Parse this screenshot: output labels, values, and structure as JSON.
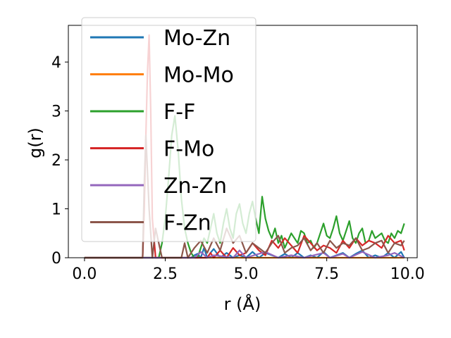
{
  "chart_data": {
    "type": "line",
    "xlabel": "r (Å)",
    "ylabel": "g(r)",
    "xlim": [
      -0.5,
      10.3
    ],
    "ylim": [
      0,
      4.75
    ],
    "xticks": [
      0.0,
      2.5,
      5.0,
      7.5,
      10.0
    ],
    "xtick_labels": [
      "0.0",
      "2.5",
      "5.0",
      "7.5",
      "10.0"
    ],
    "yticks": [
      0,
      1,
      2,
      3,
      4
    ],
    "ytick_labels": [
      "0",
      "1",
      "2",
      "3",
      "4"
    ],
    "grid": false,
    "legend_position": "upper-left",
    "series": [
      {
        "name": "Mo-Zn",
        "color": "#1f77b4",
        "x": [
          0.0,
          3.3,
          3.4,
          3.5,
          3.6,
          3.7,
          3.8,
          3.9,
          4.0,
          4.2,
          4.4,
          4.6,
          4.8,
          5.0,
          5.2,
          5.4,
          5.6,
          5.8,
          6.0,
          6.2,
          6.4,
          6.6,
          6.8,
          7.0,
          7.2,
          7.4,
          7.6,
          7.8,
          8.0,
          8.2,
          8.4,
          8.6,
          8.8,
          9.0,
          9.2,
          9.4,
          9.6,
          9.8,
          9.9
        ],
        "y": [
          0.0,
          0.0,
          0.05,
          0.08,
          0.0,
          0.2,
          0.0,
          0.1,
          0.18,
          0.0,
          0.1,
          0.0,
          0.05,
          0.0,
          0.12,
          0.0,
          0.1,
          0.05,
          0.0,
          0.08,
          0.0,
          0.1,
          0.0,
          0.05,
          0.0,
          0.12,
          0.0,
          0.05,
          0.1,
          0.0,
          0.08,
          0.15,
          0.0,
          0.05,
          0.0,
          0.1,
          0.0,
          0.12,
          0.0
        ]
      },
      {
        "name": "Mo-Mo",
        "color": "#ff7f0e",
        "x": [
          0.0,
          9.9
        ],
        "y": [
          0.0,
          0.0
        ]
      },
      {
        "name": "F-F",
        "color": "#2ca02c",
        "x": [
          0.0,
          2.3,
          2.4,
          2.5,
          2.6,
          2.7,
          2.8,
          2.9,
          3.0,
          3.1,
          3.2,
          3.3,
          3.4,
          3.5,
          3.6,
          3.7,
          3.8,
          3.9,
          4.0,
          4.1,
          4.2,
          4.3,
          4.4,
          4.5,
          4.6,
          4.7,
          4.8,
          4.9,
          5.0,
          5.1,
          5.2,
          5.3,
          5.4,
          5.5,
          5.6,
          5.7,
          5.8,
          5.9,
          6.0,
          6.1,
          6.2,
          6.3,
          6.4,
          6.5,
          6.6,
          6.7,
          6.8,
          6.9,
          7.0,
          7.1,
          7.2,
          7.3,
          7.4,
          7.5,
          7.6,
          7.7,
          7.8,
          7.9,
          8.0,
          8.1,
          8.2,
          8.3,
          8.4,
          8.5,
          8.6,
          8.7,
          8.8,
          8.9,
          9.0,
          9.1,
          9.2,
          9.3,
          9.4,
          9.5,
          9.6,
          9.7,
          9.8,
          9.9
        ],
        "y": [
          0.0,
          0.0,
          0.3,
          0.8,
          1.6,
          2.5,
          2.9,
          2.2,
          1.2,
          0.6,
          0.3,
          0.1,
          0.0,
          0.0,
          0.2,
          0.4,
          0.3,
          0.6,
          0.9,
          0.5,
          0.3,
          0.7,
          1.0,
          0.6,
          0.4,
          0.9,
          1.1,
          0.7,
          0.5,
          0.9,
          1.15,
          0.8,
          0.5,
          1.25,
          0.8,
          0.55,
          0.4,
          0.6,
          0.3,
          0.45,
          0.2,
          0.35,
          0.5,
          0.4,
          0.3,
          0.55,
          0.5,
          0.3,
          0.35,
          0.2,
          0.3,
          0.5,
          0.7,
          0.45,
          0.4,
          0.6,
          0.85,
          0.5,
          0.35,
          0.55,
          0.75,
          0.4,
          0.3,
          0.5,
          0.6,
          0.3,
          0.35,
          0.55,
          0.4,
          0.45,
          0.5,
          0.35,
          0.3,
          0.5,
          0.4,
          0.55,
          0.5,
          0.7
        ]
      },
      {
        "name": "F-Mo",
        "color": "#d62728",
        "x": [
          0.0,
          1.8,
          1.85,
          1.9,
          1.95,
          2.0,
          2.05,
          2.1,
          2.2,
          3.8,
          3.9,
          4.0,
          4.2,
          4.4,
          4.6,
          4.8,
          5.0,
          5.2,
          5.4,
          5.6,
          5.8,
          6.0,
          6.2,
          6.4,
          6.6,
          6.8,
          7.0,
          7.2,
          7.4,
          7.6,
          7.8,
          8.0,
          8.2,
          8.4,
          8.6,
          8.8,
          9.0,
          9.2,
          9.4,
          9.6,
          9.8,
          9.9
        ],
        "y": [
          0.0,
          0.0,
          1.0,
          2.5,
          3.8,
          4.55,
          3.0,
          0.8,
          0.0,
          0.0,
          0.1,
          0.0,
          0.15,
          0.0,
          0.2,
          0.05,
          0.1,
          0.3,
          0.15,
          0.05,
          0.35,
          0.2,
          0.4,
          0.25,
          0.1,
          0.45,
          0.3,
          0.15,
          0.25,
          0.2,
          0.1,
          0.35,
          0.2,
          0.4,
          0.25,
          0.35,
          0.3,
          0.2,
          0.45,
          0.3,
          0.35,
          0.15
        ]
      },
      {
        "name": "Zn-Zn",
        "color": "#9467bd",
        "x": [
          0.0,
          3.4,
          3.6,
          3.8,
          4.0,
          4.6,
          4.8,
          5.0,
          5.4,
          5.6,
          6.0,
          6.4,
          6.8,
          7.4,
          7.6,
          8.0,
          8.2,
          8.6,
          9.0,
          9.4,
          9.6,
          9.9
        ],
        "y": [
          0.0,
          0.0,
          0.12,
          0.0,
          0.05,
          0.0,
          0.15,
          0.0,
          0.08,
          0.12,
          0.0,
          0.05,
          0.0,
          0.1,
          0.0,
          0.08,
          0.0,
          0.12,
          0.0,
          0.05,
          0.1,
          0.0
        ]
      },
      {
        "name": "F-Zn",
        "color": "#8c564b",
        "x": [
          0.0,
          1.8,
          1.85,
          1.9,
          2.0,
          2.1,
          2.2,
          2.3,
          2.4,
          3.0,
          3.1,
          3.2,
          3.4,
          3.6,
          3.8,
          4.0,
          4.2,
          4.4,
          4.6,
          4.8,
          5.0,
          5.2,
          5.4,
          5.6,
          5.8,
          6.0,
          6.2,
          6.4,
          6.6,
          6.8,
          7.0,
          7.2,
          7.4,
          7.6,
          7.8,
          8.0,
          8.2,
          8.4,
          8.6,
          8.8,
          9.0,
          9.2,
          9.4,
          9.6,
          9.8,
          9.9
        ],
        "y": [
          0.0,
          0.0,
          1.5,
          2.5,
          1.0,
          0.0,
          0.6,
          0.3,
          0.0,
          0.0,
          0.3,
          0.0,
          0.2,
          0.35,
          0.1,
          0.4,
          0.15,
          0.6,
          0.3,
          0.45,
          0.1,
          0.3,
          0.2,
          0.1,
          0.3,
          0.45,
          0.1,
          0.2,
          0.25,
          0.4,
          0.15,
          0.3,
          0.1,
          0.35,
          0.2,
          0.3,
          0.25,
          0.4,
          0.15,
          0.2,
          0.3,
          0.35,
          0.1,
          0.3,
          0.25,
          0.35
        ]
      }
    ]
  }
}
